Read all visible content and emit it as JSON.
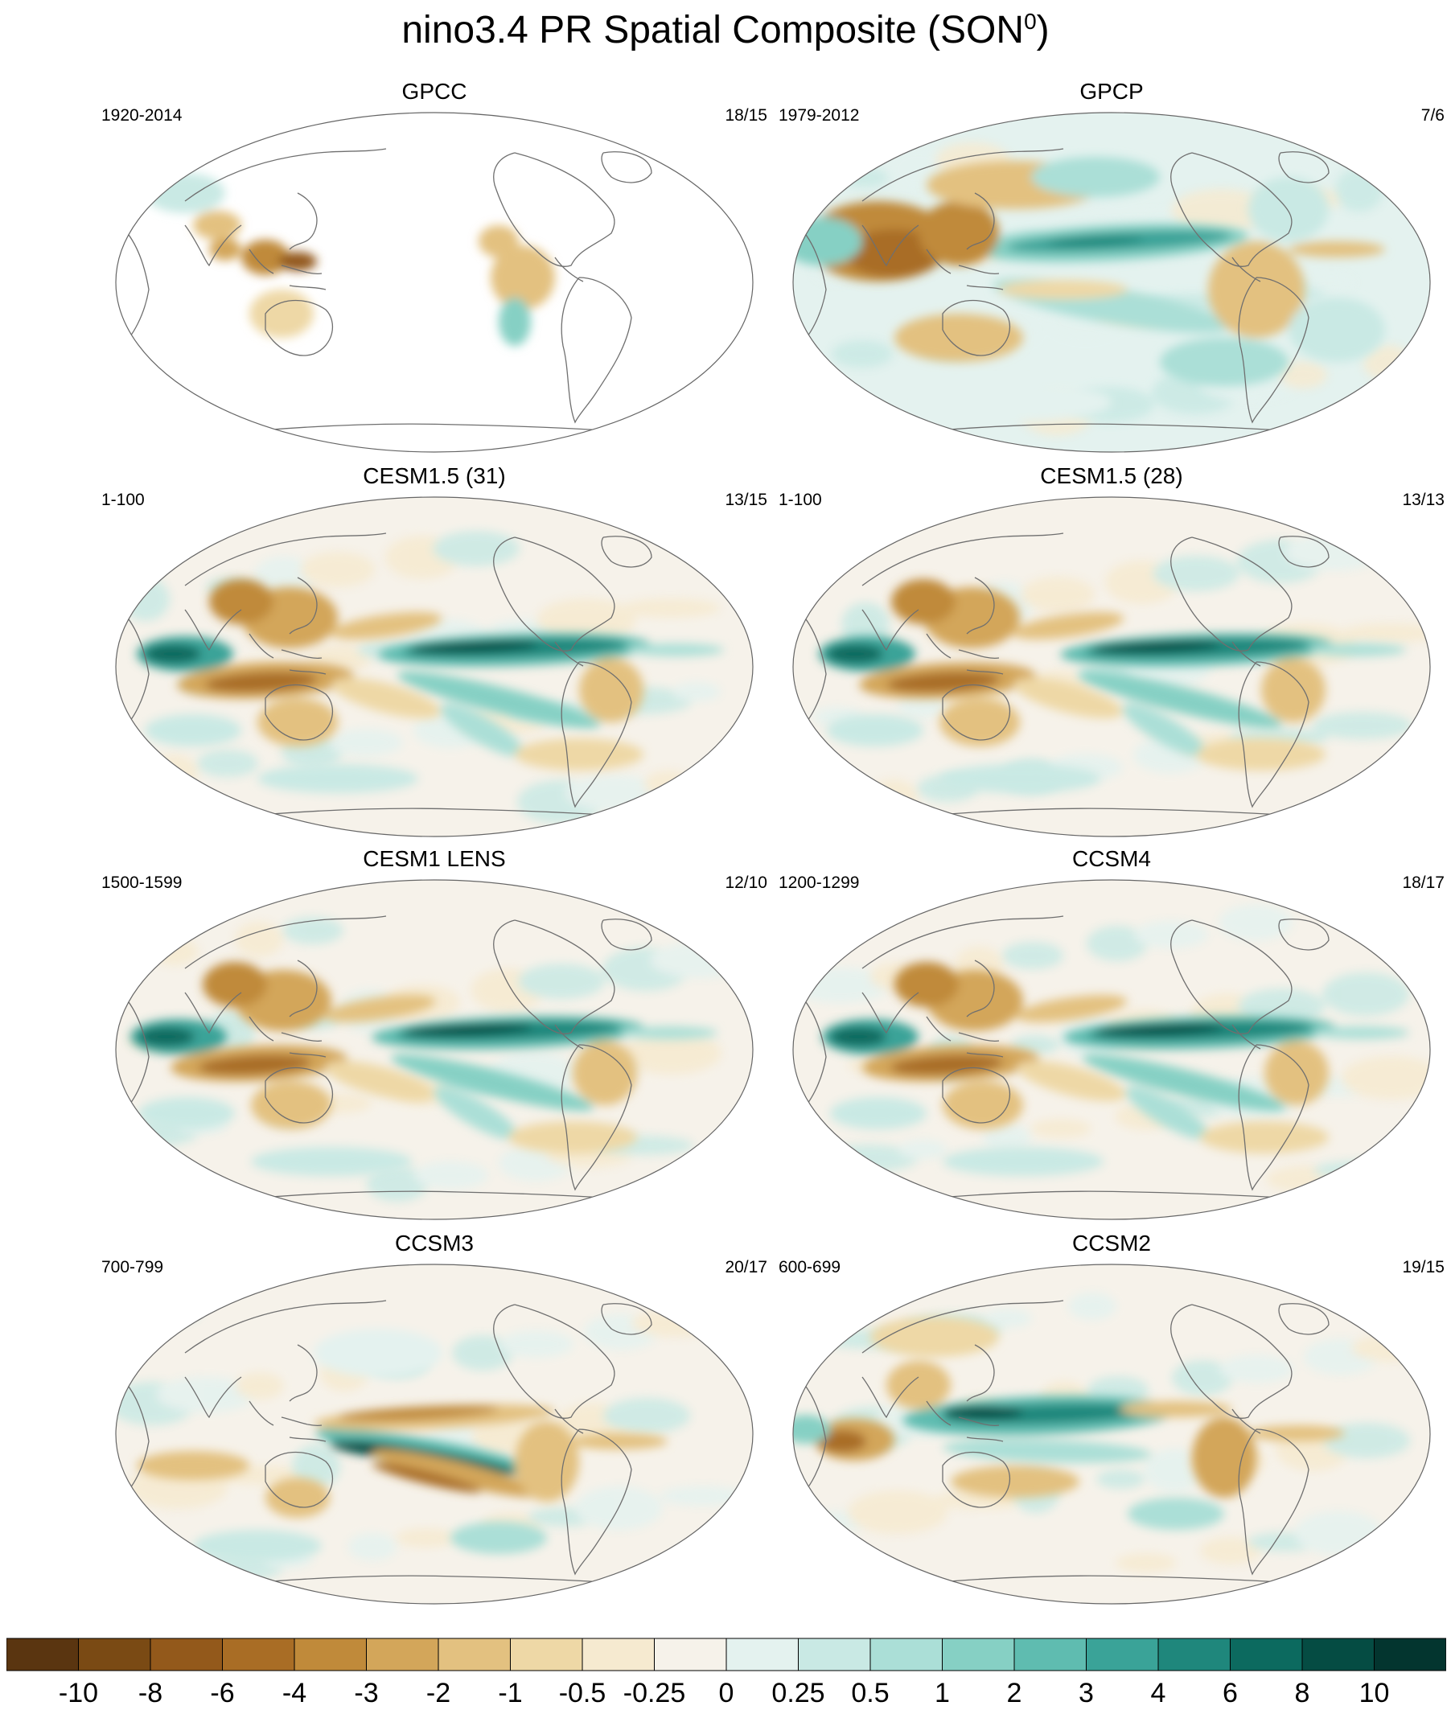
{
  "title_main": "nino3.4 PR Spatial Composite (SON",
  "title_sup": "0",
  "title_end": ")",
  "panels": [
    {
      "name": "GPCC",
      "period": "1920-2014",
      "count": "18/15",
      "pattern": "gpcc"
    },
    {
      "name": "GPCP",
      "period": "1979-2012",
      "count": "7/6",
      "pattern": "gpcp"
    },
    {
      "name": "CESM1.5 (31)",
      "period": "1-100",
      "count": "13/15",
      "pattern": "cesm15a"
    },
    {
      "name": "CESM1.5 (28)",
      "period": "1-100",
      "count": "13/13",
      "pattern": "cesm15b"
    },
    {
      "name": "CESM1 LENS",
      "period": "1500-1599",
      "count": "12/10",
      "pattern": "lens"
    },
    {
      "name": "CCSM4",
      "period": "1200-1299",
      "count": "18/17",
      "pattern": "ccsm4"
    },
    {
      "name": "CCSM3",
      "period": "700-799",
      "count": "20/17",
      "pattern": "ccsm3"
    },
    {
      "name": "CCSM2",
      "period": "600-699",
      "count": "19/15",
      "pattern": "ccsm2"
    }
  ],
  "colorbar": {
    "labels": [
      "-10",
      "-8",
      "-6",
      "-4",
      "-3",
      "-2",
      "-1",
      "-0.5",
      "-0.25",
      "0",
      "0.25",
      "0.5",
      "1",
      "2",
      "3",
      "4",
      "6",
      "8",
      "10"
    ],
    "colors": [
      "#5a3510",
      "#7a4a14",
      "#93591b",
      "#a96d25",
      "#c08a3a",
      "#d3a65a",
      "#e3c180",
      "#eed8a6",
      "#f6ead0",
      "#f6f2ea",
      "#e4f2ef",
      "#c9e9e4",
      "#abdfd7",
      "#86d0c4",
      "#5fbcb0",
      "#3aa398",
      "#1f877c",
      "#0c6a5f",
      "#054c43",
      "#03352f"
    ]
  }
}
